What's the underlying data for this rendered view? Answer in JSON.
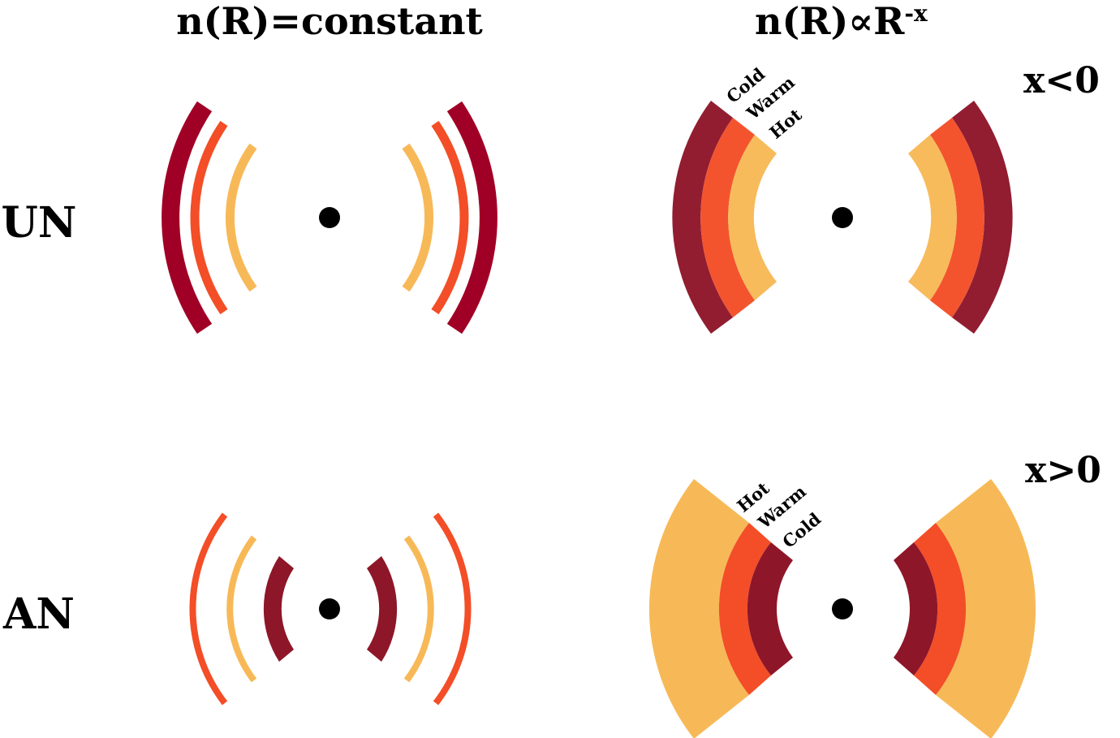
{
  "titles": {
    "left": "n(R)=constant",
    "right_main": "n(R)∝R",
    "right_exp": "-x"
  },
  "rows": {
    "top": "UN",
    "bottom": "AN"
  },
  "conditions": {
    "top": "x<0",
    "bottom": "x>0"
  },
  "band_labels": {
    "top": [
      "Cold",
      "Warm",
      "Hot"
    ],
    "bottom": [
      "Hot",
      "Warm",
      "Cold"
    ]
  },
  "colors": {
    "hot": "#F7B957",
    "warm": "#F34E27",
    "cold": "#8E1629",
    "cold_thin": "#A10026",
    "axis_blue": "#0A35F0",
    "axis_yellow": "#E8F56A",
    "center": "#000000"
  }
}
